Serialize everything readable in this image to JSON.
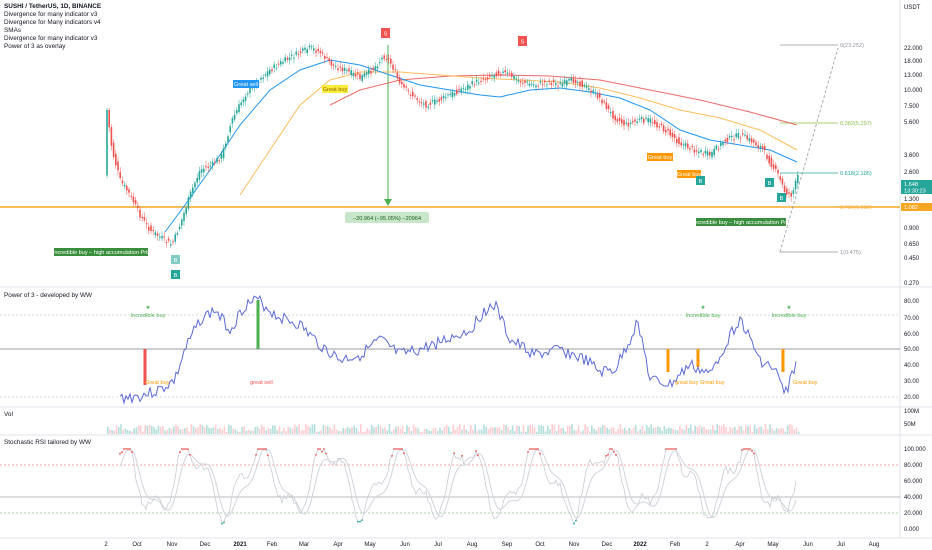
{
  "legend": {
    "symbol": "SUSHI / TetherUS, 1D, BINANCE",
    "lines": [
      "Divergence for many indicator v3",
      "Divergence for Many indicators v4",
      "SMAs",
      "Divergence for many indicator v3",
      "Power of 3 as overlay"
    ]
  },
  "currency": "USDT",
  "price_axis": [
    "22.000",
    "18.000",
    "13.000",
    "10.000",
    "7.500",
    "5.600",
    "3.600",
    "2.600",
    "1.900",
    "1.300",
    "0.900",
    "0.650",
    "0.450",
    "0.270"
  ],
  "price_badges": {
    "last": "1.648",
    "countdown": "13:30:23",
    "level": "1.082"
  },
  "fib_labels": [
    "0(23.252)",
    "0.382(5.297)",
    "0.618(2.105)",
    "0.786(1.082)",
    "1(0.475)"
  ],
  "measure_label": "−20.964 (−95.05%) −20964",
  "annotations": {
    "great_sell_1": "Great sell",
    "great_buy_1": "Great buy",
    "great_buy_2": "Great buy",
    "great_buy_3": "Great buy",
    "incredible_1": "Incredible buy – high accumulation Prb",
    "incredible_2": "Incredible buy – high accumulation Prb",
    "flag_s": "S",
    "flag_b": "B"
  },
  "panel2": {
    "title": "Power of 3 - developed by WW",
    "axis": [
      "80.00",
      "70.00",
      "60.00",
      "50.00",
      "40.00",
      "30.00",
      "20.00"
    ],
    "labels": {
      "ib1": "Incredible buy",
      "ib2": "Incredible buy",
      "ib3": "Incredible buy",
      "gb1": "Great buy",
      "gs": "great sell",
      "gb2": "great buy",
      "gb3": "Great buy",
      "gb4": "Great buy"
    },
    "star": "★"
  },
  "panel3": {
    "title": "Vol",
    "axis": [
      "100M",
      "50M"
    ]
  },
  "panel4": {
    "title": "Stochastic RSI tailored by WW",
    "axis": [
      "100.000",
      "80.000",
      "60.000",
      "40.000",
      "20.000",
      "0.000"
    ]
  },
  "time_axis": [
    "2",
    "Oct",
    "Nov",
    "Dec",
    "2021",
    "Feb",
    "Mar",
    "Apr",
    "May",
    "Jun",
    "Jul",
    "Aug",
    "Sep",
    "Oct",
    "Nov",
    "Dec",
    "2022",
    "Feb",
    "2",
    "Apr",
    "May",
    "Jun",
    "Jul",
    "Aug"
  ],
  "colors": {
    "up": "#26a69a",
    "down": "#ef5350",
    "blue_sma": "#2196f3",
    "orange_sma": "#ffb74d",
    "red_sma": "#e53935",
    "fib": "#787b86",
    "level": "#f5a623",
    "osc": "#5b6bd6"
  }
}
